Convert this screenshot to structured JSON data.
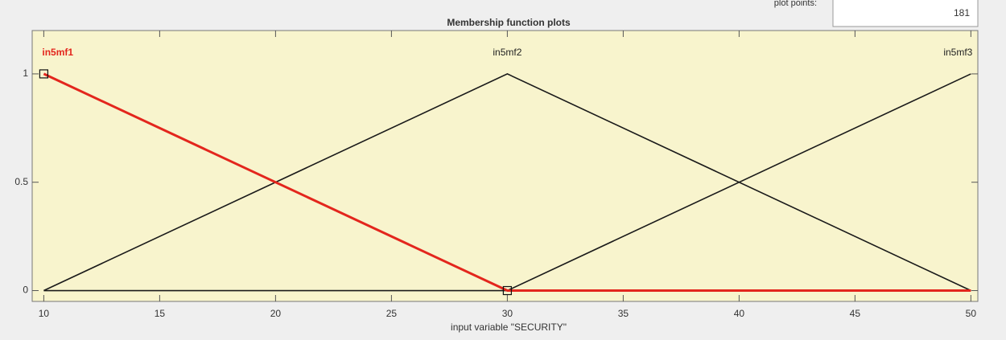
{
  "plot_points": {
    "label": "plot points:",
    "value": 181
  },
  "chart_data": {
    "type": "line",
    "title": "Membership function plots",
    "x_label": "input variable \"SECURITY\"",
    "x": [
      10,
      30,
      50
    ],
    "series": [
      {
        "name": "in5mf1",
        "color": "#e3261d",
        "values": [
          1,
          0,
          0
        ],
        "selected": true
      },
      {
        "name": "in5mf2",
        "color": "#1a1a1a",
        "values": [
          0,
          1,
          0
        ]
      },
      {
        "name": "in5mf3",
        "color": "#1a1a1a",
        "values": [
          0,
          0,
          1
        ]
      }
    ],
    "xlim": [
      9.5,
      50.3
    ],
    "ylim": [
      -0.05,
      1.2
    ],
    "xticks": [
      10,
      15,
      20,
      25,
      30,
      35,
      40,
      45,
      50
    ],
    "yticks": [
      0,
      0.5,
      1
    ],
    "grid": false
  }
}
